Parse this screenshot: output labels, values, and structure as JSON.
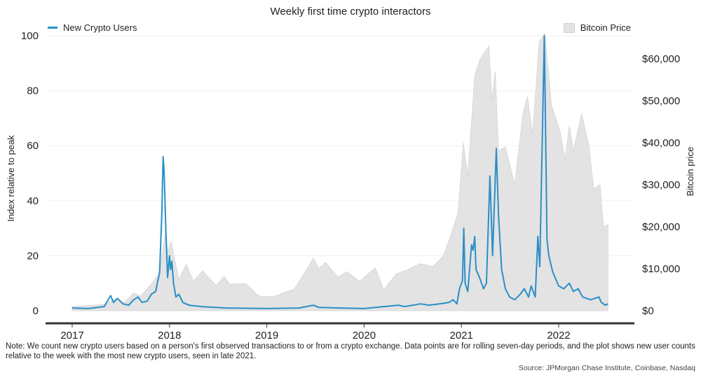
{
  "chart_data": {
    "type": "line",
    "title": "Weekly first time crypto interactors",
    "ylabel": "Index relative to peak",
    "y2label": "Bitcoin price",
    "ylim": [
      0,
      100
    ],
    "y2lim": [
      0,
      66000
    ],
    "xlim": [
      "2016-10-15",
      "2022-09-15"
    ],
    "yticks": [
      "0",
      "20",
      "40",
      "60",
      "80",
      "100"
    ],
    "y2ticks": [
      "$0",
      "$10,000",
      "$20,000",
      "$30,000",
      "$40,000",
      "$50,000",
      "$60,000"
    ],
    "xticks": [
      "2017",
      "2018",
      "2019",
      "2020",
      "2021",
      "2022"
    ],
    "grid": "horizontal",
    "legend_placement": "top",
    "colors": {
      "users": "#2a8fc6",
      "bitcoin": "#e3e3e3"
    },
    "series": [
      {
        "name": "New Crypto Users",
        "axis": "left",
        "type": "line",
        "points": [
          [
            "2017-01-01",
            1
          ],
          [
            "2017-03-01",
            0.8
          ],
          [
            "2017-05-01",
            1.5
          ],
          [
            "2017-05-25",
            5.5
          ],
          [
            "2017-06-05",
            3
          ],
          [
            "2017-06-20",
            4.5
          ],
          [
            "2017-07-10",
            2.5
          ],
          [
            "2017-08-01",
            2
          ],
          [
            "2017-08-20",
            4
          ],
          [
            "2017-09-05",
            5
          ],
          [
            "2017-09-20",
            3
          ],
          [
            "2017-10-10",
            3.5
          ],
          [
            "2017-10-25",
            6
          ],
          [
            "2017-11-10",
            7
          ],
          [
            "2017-11-25",
            14
          ],
          [
            "2017-12-03",
            35
          ],
          [
            "2017-12-08",
            56
          ],
          [
            "2017-12-12",
            50
          ],
          [
            "2017-12-18",
            30
          ],
          [
            "2017-12-25",
            12
          ],
          [
            "2018-01-01",
            20
          ],
          [
            "2018-01-05",
            15
          ],
          [
            "2018-01-10",
            18
          ],
          [
            "2018-01-16",
            10
          ],
          [
            "2018-01-25",
            5
          ],
          [
            "2018-02-05",
            6
          ],
          [
            "2018-02-20",
            3
          ],
          [
            "2018-03-15",
            2
          ],
          [
            "2018-05-01",
            1.5
          ],
          [
            "2018-08-01",
            1
          ],
          [
            "2019-01-01",
            0.8
          ],
          [
            "2019-05-01",
            1
          ],
          [
            "2019-06-25",
            2
          ],
          [
            "2019-07-15",
            1.2
          ],
          [
            "2019-10-01",
            1
          ],
          [
            "2020-01-01",
            0.8
          ],
          [
            "2020-03-15",
            1.5
          ],
          [
            "2020-05-10",
            2
          ],
          [
            "2020-06-01",
            1.5
          ],
          [
            "2020-08-01",
            2.5
          ],
          [
            "2020-09-01",
            2
          ],
          [
            "2020-10-10",
            2.5
          ],
          [
            "2020-11-15",
            3
          ],
          [
            "2020-12-01",
            4
          ],
          [
            "2020-12-15",
            2.5
          ],
          [
            "2020-12-25",
            8
          ],
          [
            "2021-01-05",
            11
          ],
          [
            "2021-01-10",
            30
          ],
          [
            "2021-01-15",
            10
          ],
          [
            "2021-01-25",
            7
          ],
          [
            "2021-02-08",
            24
          ],
          [
            "2021-02-14",
            22
          ],
          [
            "2021-02-20",
            27
          ],
          [
            "2021-02-25",
            15
          ],
          [
            "2021-03-10",
            12
          ],
          [
            "2021-03-25",
            8
          ],
          [
            "2021-04-05",
            10
          ],
          [
            "2021-04-18",
            49
          ],
          [
            "2021-04-28",
            20
          ],
          [
            "2021-05-12",
            59
          ],
          [
            "2021-05-20",
            35
          ],
          [
            "2021-06-01",
            15
          ],
          [
            "2021-06-15",
            8
          ],
          [
            "2021-07-01",
            5
          ],
          [
            "2021-07-20",
            4
          ],
          [
            "2021-08-10",
            6
          ],
          [
            "2021-08-25",
            8
          ],
          [
            "2021-09-10",
            5
          ],
          [
            "2021-09-20",
            9
          ],
          [
            "2021-10-05",
            5
          ],
          [
            "2021-10-15",
            27
          ],
          [
            "2021-10-22",
            16
          ],
          [
            "2021-11-08",
            100
          ],
          [
            "2021-11-18",
            26
          ],
          [
            "2021-11-25",
            20
          ],
          [
            "2021-12-10",
            14
          ],
          [
            "2022-01-01",
            9
          ],
          [
            "2022-01-20",
            8
          ],
          [
            "2022-02-10",
            10
          ],
          [
            "2022-02-25",
            7
          ],
          [
            "2022-03-15",
            8
          ],
          [
            "2022-04-01",
            5
          ],
          [
            "2022-05-01",
            4
          ],
          [
            "2022-06-01",
            5
          ],
          [
            "2022-06-10",
            3
          ],
          [
            "2022-06-25",
            2
          ],
          [
            "2022-07-05",
            2.5
          ]
        ]
      },
      {
        "name": "Bitcoin Price",
        "axis": "right",
        "type": "area",
        "points": [
          [
            "2017-01-01",
            1000
          ],
          [
            "2017-03-01",
            1200
          ],
          [
            "2017-05-01",
            1500
          ],
          [
            "2017-06-10",
            2800
          ],
          [
            "2017-07-15",
            2000
          ],
          [
            "2017-08-20",
            4200
          ],
          [
            "2017-09-15",
            3500
          ],
          [
            "2017-10-20",
            6000
          ],
          [
            "2017-11-25",
            9000
          ],
          [
            "2017-12-17",
            19000
          ],
          [
            "2017-12-25",
            14000
          ],
          [
            "2018-01-07",
            16500
          ],
          [
            "2018-02-05",
            7500
          ],
          [
            "2018-03-05",
            11000
          ],
          [
            "2018-04-01",
            7000
          ],
          [
            "2018-05-05",
            9500
          ],
          [
            "2018-06-25",
            6000
          ],
          [
            "2018-07-25",
            8200
          ],
          [
            "2018-08-15",
            6300
          ],
          [
            "2018-10-15",
            6500
          ],
          [
            "2018-11-25",
            3800
          ],
          [
            "2018-12-15",
            3300
          ],
          [
            "2019-02-01",
            3500
          ],
          [
            "2019-04-15",
            5200
          ],
          [
            "2019-06-25",
            12500
          ],
          [
            "2019-07-15",
            10000
          ],
          [
            "2019-08-10",
            11500
          ],
          [
            "2019-09-25",
            8000
          ],
          [
            "2019-10-28",
            9300
          ],
          [
            "2019-12-15",
            7000
          ],
          [
            "2020-02-12",
            10200
          ],
          [
            "2020-03-15",
            5000
          ],
          [
            "2020-05-01",
            8800
          ],
          [
            "2020-06-10",
            9700
          ],
          [
            "2020-07-30",
            11200
          ],
          [
            "2020-09-15",
            10500
          ],
          [
            "2020-10-25",
            13000
          ],
          [
            "2020-11-25",
            18500
          ],
          [
            "2020-12-20",
            23500
          ],
          [
            "2021-01-08",
            40000
          ],
          [
            "2021-01-25",
            32000
          ],
          [
            "2021-02-20",
            56000
          ],
          [
            "2021-03-13",
            60000
          ],
          [
            "2021-04-14",
            63000
          ],
          [
            "2021-04-25",
            50000
          ],
          [
            "2021-05-08",
            57000
          ],
          [
            "2021-05-20",
            38000
          ],
          [
            "2021-06-15",
            39000
          ],
          [
            "2021-07-20",
            30000
          ],
          [
            "2021-08-20",
            47000
          ],
          [
            "2021-09-06",
            51000
          ],
          [
            "2021-09-25",
            42000
          ],
          [
            "2021-10-20",
            64000
          ],
          [
            "2021-11-10",
            66000
          ],
          [
            "2021-12-05",
            49000
          ],
          [
            "2022-01-05",
            43000
          ],
          [
            "2022-01-25",
            36000
          ],
          [
            "2022-02-10",
            44000
          ],
          [
            "2022-02-25",
            38000
          ],
          [
            "2022-03-28",
            47000
          ],
          [
            "2022-04-25",
            39000
          ],
          [
            "2022-05-12",
            29000
          ],
          [
            "2022-06-05",
            30000
          ],
          [
            "2022-06-18",
            20000
          ],
          [
            "2022-07-05",
            20500
          ]
        ]
      }
    ]
  },
  "note": "Note: We count new crypto users based on a person's first observed transactions to or from a crypto exchange. Data points are for rolling seven-day periods, and the plot shows new user counts relative to the week with the most new crypto users, seen in late 2021.",
  "source": "Source: JPMorgan Chase Institute, Coinbase, Nasdaq"
}
